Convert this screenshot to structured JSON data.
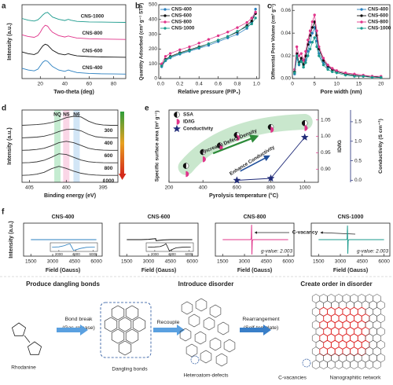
{
  "chart_data": [
    {
      "panel": "a",
      "type": "line",
      "xlabel": "Two-theta (deg)",
      "ylabel": "Intensity (a.u.)",
      "xlim": [
        5,
        90
      ],
      "ylim": [
        0,
        4.3
      ],
      "xticks": [
        20,
        40,
        60,
        80
      ],
      "x": [
        5,
        10,
        15,
        18,
        20,
        22,
        24,
        26,
        28,
        30,
        35,
        40,
        43,
        45,
        50,
        60,
        70,
        80,
        90
      ],
      "series": [
        {
          "name": "CNS-1000",
          "color": "#1a9a8c",
          "values": [
            3.5,
            3.4,
            3.35,
            3.42,
            3.55,
            3.7,
            3.82,
            3.85,
            3.72,
            3.58,
            3.45,
            3.38,
            3.45,
            3.4,
            3.33,
            3.3,
            3.29,
            3.28,
            3.27
          ]
        },
        {
          "name": "CNS-800",
          "color": "#e0348a",
          "values": [
            2.55,
            2.45,
            2.4,
            2.5,
            2.7,
            2.95,
            3.1,
            3.05,
            2.85,
            2.7,
            2.5,
            2.42,
            2.48,
            2.44,
            2.36,
            2.32,
            2.3,
            2.29,
            2.28
          ]
        },
        {
          "name": "CNS-600",
          "color": "#111111",
          "values": [
            1.55,
            1.45,
            1.4,
            1.5,
            1.7,
            1.9,
            2.0,
            1.95,
            1.8,
            1.65,
            1.45,
            1.38,
            1.45,
            1.4,
            1.32,
            1.28,
            1.26,
            1.25,
            1.24
          ]
        },
        {
          "name": "CNS-400",
          "color": "#2a7fc0",
          "values": [
            0.6,
            0.5,
            0.45,
            0.55,
            0.75,
            0.95,
            1.05,
            1.0,
            0.85,
            0.7,
            0.5,
            0.42,
            0.5,
            0.45,
            0.35,
            0.3,
            0.28,
            0.27,
            0.26
          ]
        }
      ]
    },
    {
      "panel": "b",
      "type": "line",
      "xlabel": "Relative pressure (P/P₀)",
      "ylabel": "Quantity Adsorbed (cm³ g⁻¹ STP)",
      "xlim": [
        -0.02,
        1.03
      ],
      "ylim": [
        0,
        500
      ],
      "xticks": [
        {
          "value": 0,
          "label": "0.0"
        },
        0.2,
        0.4,
        0.6,
        0.8,
        {
          "value": 1,
          "label": "1.0"
        }
      ],
      "yticks": [
        0,
        100,
        200,
        300,
        400,
        500
      ],
      "legend": "upper left",
      "marker": "circle",
      "x": [
        0.01,
        0.05,
        0.1,
        0.2,
        0.3,
        0.4,
        0.5,
        0.6,
        0.7,
        0.8,
        0.9,
        0.95,
        0.99
      ],
      "series": [
        {
          "name": "CNS-400",
          "color": "#2a7fc0",
          "values": [
            80,
            120,
            140,
            165,
            185,
            205,
            225,
            250,
            275,
            300,
            340,
            380,
            470
          ]
        },
        {
          "name": "CNS-600",
          "color": "#111111",
          "values": [
            90,
            130,
            150,
            175,
            195,
            215,
            235,
            260,
            285,
            315,
            360,
            390,
            440
          ]
        },
        {
          "name": "CNS-800",
          "color": "#e0348a",
          "values": [
            100,
            150,
            170,
            195,
            215,
            240,
            265,
            290,
            315,
            345,
            380,
            410,
            450
          ]
        },
        {
          "name": "CNS-1000",
          "color": "#1a9a8c",
          "values": [
            85,
            125,
            145,
            170,
            190,
            210,
            235,
            260,
            285,
            320,
            350,
            370,
            410
          ]
        }
      ]
    },
    {
      "panel": "c",
      "type": "line",
      "xlabel": "Pore width (nm)",
      "ylabel": "Differential Pore Volume (cm³ g⁻¹)",
      "xlim": [
        0,
        22
      ],
      "ylim": [
        0,
        0.065
      ],
      "xticks": [
        0,
        5,
        10,
        15,
        20
      ],
      "yticks": [
        {
          "value": 0,
          "label": "0.00"
        },
        0.02,
        0.04,
        0.06
      ],
      "legend": "upper right",
      "marker": "circle",
      "x": [
        0.5,
        1,
        1.5,
        2,
        2.5,
        3,
        3.5,
        4,
        4.5,
        5,
        5.5,
        6,
        7,
        8,
        9,
        10,
        12,
        14,
        16,
        18,
        20
      ],
      "series": [
        {
          "name": "CNS-400",
          "color": "#2a7fc0",
          "values": [
            0.004,
            0.018,
            0.012,
            0.016,
            0.01,
            0.016,
            0.024,
            0.032,
            0.04,
            0.045,
            0.033,
            0.022,
            0.014,
            0.01,
            0.008,
            0.006,
            0.004,
            0.003,
            0.002,
            0.002,
            0.001
          ]
        },
        {
          "name": "CNS-600",
          "color": "#111111",
          "values": [
            0.006,
            0.022,
            0.014,
            0.018,
            0.012,
            0.02,
            0.03,
            0.038,
            0.045,
            0.05,
            0.038,
            0.026,
            0.016,
            0.011,
            0.008,
            0.006,
            0.004,
            0.003,
            0.002,
            0.002,
            0.001
          ]
        },
        {
          "name": "CNS-800",
          "color": "#e0348a",
          "values": [
            0.008,
            0.028,
            0.02,
            0.022,
            0.016,
            0.024,
            0.034,
            0.042,
            0.05,
            0.056,
            0.042,
            0.028,
            0.018,
            0.012,
            0.009,
            0.007,
            0.005,
            0.004,
            0.003,
            0.002,
            0.002
          ]
        },
        {
          "name": "CNS-1000",
          "color": "#1a9a8c",
          "values": [
            0.005,
            0.02,
            0.013,
            0.015,
            0.01,
            0.014,
            0.02,
            0.026,
            0.032,
            0.036,
            0.028,
            0.02,
            0.012,
            0.008,
            0.006,
            0.005,
            0.003,
            0.002,
            0.002,
            0.001,
            0.001
          ]
        }
      ]
    },
    {
      "panel": "d",
      "type": "line",
      "xlabel": "Binding energy (eV)",
      "ylabel": "Intensity (a.u.)",
      "xlim": [
        406,
        393
      ],
      "ylim": [
        0,
        5.2
      ],
      "xticks": [
        405,
        400,
        395
      ],
      "bands": [
        {
          "label": "NQ",
          "center": 401.2,
          "color": "#7fd49a"
        },
        {
          "label": "N5",
          "center": 400.0,
          "color": "#f4a3c8"
        },
        {
          "label": "N6",
          "center": 398.6,
          "color": "#9cc8ea"
        }
      ],
      "x": [
        406,
        405,
        404,
        403,
        402,
        401,
        400,
        399,
        398,
        397,
        396,
        395,
        394,
        393
      ],
      "series": [
        {
          "name": "300",
          "color": "#333333",
          "values": [
            4.1,
            4.12,
            4.15,
            4.2,
            4.3,
            4.45,
            4.65,
            4.75,
            4.7,
            4.4,
            4.2,
            4.12,
            4.1,
            4.1
          ]
        },
        {
          "name": "400",
          "color": "#333333",
          "values": [
            3.2,
            3.22,
            3.25,
            3.32,
            3.45,
            3.65,
            3.8,
            3.82,
            3.7,
            3.45,
            3.28,
            3.22,
            3.2,
            3.2
          ]
        },
        {
          "name": "600",
          "color": "#333333",
          "values": [
            2.3,
            2.32,
            2.36,
            2.45,
            2.62,
            2.85,
            2.95,
            2.85,
            2.65,
            2.45,
            2.35,
            2.31,
            2.3,
            2.3
          ]
        },
        {
          "name": "800",
          "color": "#333333",
          "values": [
            1.4,
            1.42,
            1.47,
            1.58,
            1.8,
            2.05,
            2.0,
            1.8,
            1.6,
            1.48,
            1.43,
            1.41,
            1.4,
            1.4
          ]
        },
        {
          "name": "1000",
          "color": "#333333",
          "values": [
            0.5,
            0.52,
            0.58,
            0.72,
            0.98,
            1.15,
            1.0,
            0.8,
            0.65,
            0.56,
            0.52,
            0.5,
            0.5,
            0.5
          ]
        }
      ]
    },
    {
      "panel": "e",
      "type": "scatter",
      "xlabel": "Pyrolysis temperature (°C)",
      "ylabel": "Specific surface area (m² g⁻¹)",
      "y2label": "ID/IG",
      "y3label": "Conductivity (S cm⁻¹)",
      "xlim": [
        200,
        1080
      ],
      "ylim": [
        0,
        1100
      ],
      "y2lim": [
        0.86,
        1.08
      ],
      "y3lim": [
        -0.05,
        1.8
      ],
      "xticks": [
        200,
        400,
        600,
        800,
        1000
      ],
      "y2ticks": [
        {
          "value": 0.9,
          "label": "0.90"
        },
        0.95,
        {
          "value": 1.0,
          "label": "1.00"
        },
        1.05
      ],
      "y3ticks": [
        {
          "value": 0,
          "label": "0.0"
        },
        0.5,
        {
          "value": 1.0,
          "label": "1.0"
        },
        1.5
      ],
      "legend": "upper left",
      "annotations": [
        "Increase Defect Density",
        "Enhance Conductivity"
      ],
      "series": [
        {
          "name": "SSA",
          "color": "#111111",
          "marker": "half-left",
          "line": false,
          "x": [
            300,
            400,
            500,
            600,
            800,
            1000
          ],
          "values": [
            250,
            460,
            560,
            720,
            840,
            900
          ]
        },
        {
          "name": "ID/IG",
          "color": "#e0348a",
          "marker": "half-right",
          "line": false,
          "axis": "y2",
          "x": [
            300,
            400,
            500,
            600,
            800,
            1000
          ],
          "values": [
            0.885,
            0.93,
            0.965,
            0.995,
            1.02,
            1.025
          ]
        },
        {
          "name": "Conductivity",
          "color": "#1f2a78",
          "marker": "star",
          "axis": "y3",
          "x": [
            600,
            800,
            1000
          ],
          "values": [
            0.0,
            0.05,
            1.1
          ]
        }
      ]
    },
    {
      "panel": "f",
      "type": "line",
      "title": "CNS-400",
      "xlabel": "Field (Gauss)",
      "ylabel": "Intensity (a.u.)",
      "color": "#2a7fc0",
      "xlim": [
        1000,
        6400
      ],
      "ylim": [
        -1,
        1
      ],
      "xticks": [
        1500,
        3000,
        4500,
        6000
      ],
      "x": [
        1500,
        2500,
        3000,
        3400,
        3460,
        3490,
        3500,
        3510,
        3540,
        3600,
        4000,
        4500,
        5500,
        6000
      ],
      "values": [
        0,
        0,
        0,
        0,
        0,
        0,
        0,
        0,
        0,
        0,
        0,
        0,
        0,
        0
      ],
      "inset": {
        "xlim": [
          1000,
          6500
        ],
        "ylim": [
          -0.8,
          0.8
        ],
        "xticks": [
          2000,
          4000,
          6000
        ],
        "x": [
          1200,
          2000,
          2600,
          3000,
          3300,
          3500,
          3700,
          4000,
          4500,
          5200,
          6200
        ],
        "values": [
          0,
          0.05,
          0.25,
          0.5,
          0.6,
          0,
          -0.6,
          -0.5,
          -0.25,
          -0.05,
          0
        ]
      }
    },
    {
      "type": "line",
      "title": "CNS-600",
      "xlabel": "Field (Gauss)",
      "color": "#111111",
      "xlim": [
        1000,
        6400
      ],
      "ylim": [
        -1,
        1
      ],
      "xticks": [
        1500,
        3000,
        4500,
        6000
      ],
      "x": [
        1500,
        2500,
        3000,
        3400,
        3460,
        3490,
        3500,
        3510,
        3540,
        3600,
        4000,
        4500,
        5500,
        6000
      ],
      "values": [
        0,
        0,
        0.02,
        0.05,
        0.06,
        0.06,
        0,
        -0.06,
        -0.06,
        -0.05,
        -0.02,
        0,
        0,
        0
      ],
      "inset": {
        "xlim": [
          1000,
          6500
        ],
        "ylim": [
          -0.9,
          0.9
        ],
        "xticks": [
          2000,
          4000,
          6000
        ],
        "x": [
          1200,
          2000,
          2600,
          3000,
          3300,
          3500,
          3700,
          4000,
          4500,
          5200,
          6200
        ],
        "values": [
          0,
          0.03,
          0.1,
          0.35,
          0.7,
          0,
          -0.8,
          -0.5,
          -0.15,
          -0.03,
          0
        ]
      }
    },
    {
      "type": "line",
      "title": "CNS-800",
      "xlabel": "Field (Gauss)",
      "color": "#e0348a",
      "annotation": "g-value: 2.003",
      "callout": "C-vacancy",
      "xlim": [
        1000,
        6400
      ],
      "ylim": [
        -1,
        1
      ],
      "xticks": [
        1500,
        3000,
        4500,
        6000
      ],
      "x": [
        1500,
        2500,
        3000,
        3400,
        3460,
        3490,
        3500,
        3510,
        3540,
        3600,
        4000,
        4500,
        5500,
        6000
      ],
      "values": [
        0,
        0,
        0,
        0,
        0.05,
        0.9,
        0,
        -0.9,
        -0.05,
        0,
        0,
        0,
        0,
        0
      ]
    },
    {
      "type": "line",
      "title": "CNS-1000",
      "xlabel": "Field (Gauss)",
      "color": "#1a9a8c",
      "annotation": "g-value: 2.003",
      "xlim": [
        1000,
        6400
      ],
      "ylim": [
        -1,
        1
      ],
      "xticks": [
        1500,
        3000,
        4500,
        6000
      ],
      "x": [
        1500,
        2500,
        3000,
        3400,
        3460,
        3490,
        3500,
        3510,
        3540,
        3600,
        4000,
        4500,
        5500,
        6000
      ],
      "values": [
        0,
        0,
        0,
        0,
        0.04,
        0.85,
        0,
        -0.85,
        -0.04,
        0,
        0,
        0,
        0,
        0
      ]
    }
  ],
  "schematic": {
    "titles": [
      "Produce dangling bonds",
      "Introduce disorder",
      "Create order in disorder"
    ],
    "steps": [
      "Bond break",
      "(Gas-release)",
      "Recouple",
      "Rearrangement",
      "(Self-template)"
    ],
    "labels": [
      "Rhodanine",
      "Dangling bonds",
      "Heteroatom-defects",
      "C-vacancies",
      "Nanographitic network"
    ]
  }
}
